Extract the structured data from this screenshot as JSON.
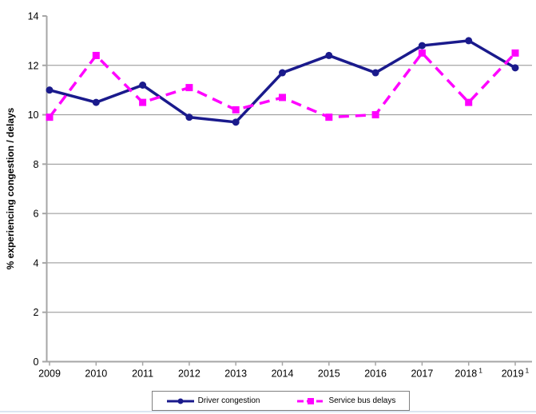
{
  "chart_data": {
    "type": "line",
    "title": "",
    "xlabel": "",
    "ylabel": "% experiencing congestion / delays",
    "ylim": [
      0,
      14
    ],
    "y_ticks": [
      0,
      2,
      4,
      6,
      8,
      10,
      12,
      14
    ],
    "grid_values": [
      2,
      4,
      6,
      8,
      10,
      12
    ],
    "grid": true,
    "legend_position": "bottom",
    "categories": [
      "2009",
      "2010",
      "2011",
      "2012",
      "2013",
      "2014",
      "2015",
      "2016",
      "2017",
      "2018",
      "2019"
    ],
    "x_tick_labels": [
      {
        "text": "2009",
        "sup": ""
      },
      {
        "text": "2010",
        "sup": ""
      },
      {
        "text": "2011",
        "sup": ""
      },
      {
        "text": "2012",
        "sup": ""
      },
      {
        "text": "2013",
        "sup": ""
      },
      {
        "text": "2014",
        "sup": ""
      },
      {
        "text": "2015",
        "sup": ""
      },
      {
        "text": "2016",
        "sup": ""
      },
      {
        "text": "2017",
        "sup": ""
      },
      {
        "text": "2018",
        "sup": "1"
      },
      {
        "text": "2019",
        "sup": "1"
      }
    ],
    "series": [
      {
        "name": "Driver congestion",
        "color": "#1a1a8c",
        "marker": "circle",
        "line_style": "solid",
        "values": [
          11.0,
          10.5,
          11.2,
          9.9,
          9.7,
          11.7,
          12.4,
          11.7,
          12.8,
          13.0,
          11.9
        ]
      },
      {
        "name": "Service bus delays",
        "color": "#ff00ff",
        "marker": "square",
        "line_style": "dashed",
        "values": [
          9.9,
          12.4,
          10.5,
          11.1,
          10.2,
          10.7,
          9.9,
          10.0,
          12.5,
          10.5,
          12.5
        ]
      }
    ]
  },
  "colors": {
    "background": "#ffffff",
    "gridline": "#909090",
    "axis": "#a6a6a6",
    "text": "#000000",
    "legend_border": "#808080",
    "bottom_rule": "#dbe5f1"
  }
}
